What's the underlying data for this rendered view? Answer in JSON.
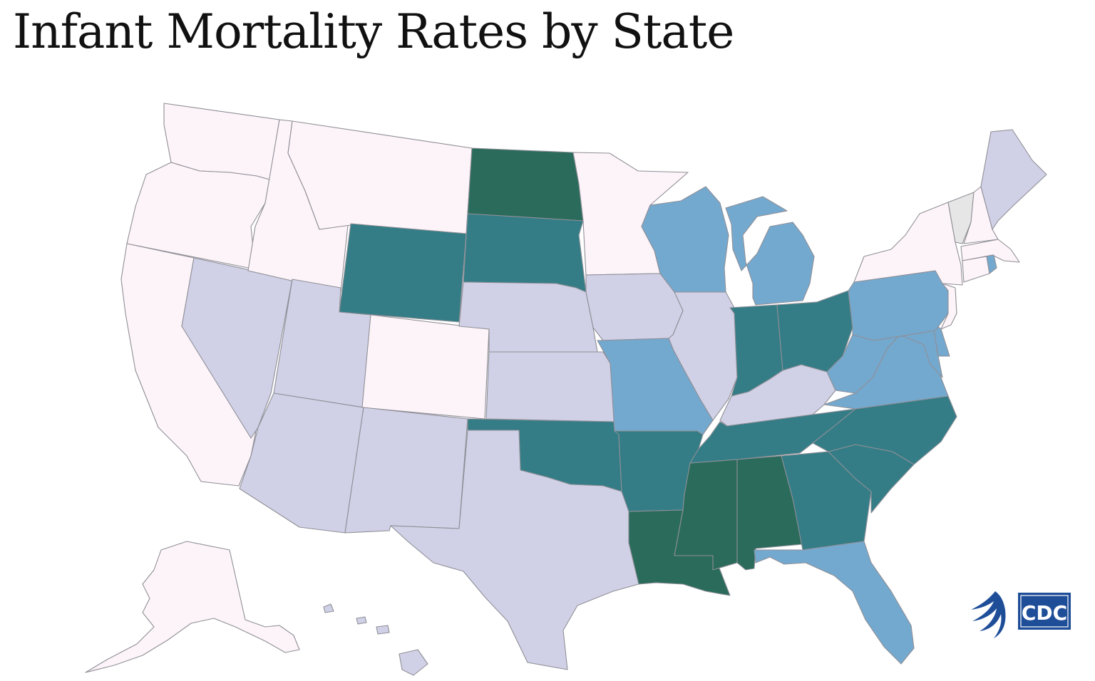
{
  "title": "Infant Mortality Rates by State",
  "colors": {
    "tier1": "#fdf4f9",
    "tier2": "#d0d1e6",
    "tier3": "#74a9cf",
    "tier4": "#347d86",
    "tier5": "#2a6b5c",
    "nodata": "#e6e6e6",
    "border": "#8f8f97"
  },
  "states": {
    "WA": "tier1",
    "OR": "tier1",
    "CA": "tier1",
    "ID": "tier1",
    "MT": "tier1",
    "CO": "tier1",
    "MN": "tier1",
    "NY": "tier1",
    "NH": "tier1",
    "MA": "tier1",
    "CT": "tier1",
    "NJ": "tier1",
    "AK": "tier1",
    "NV": "tier2",
    "UT": "tier2",
    "AZ": "tier2",
    "NM": "tier2",
    "TX": "tier2",
    "NE": "tier2",
    "KS": "tier2",
    "IA": "tier2",
    "IL": "tier2",
    "KY": "tier2",
    "ME": "tier2",
    "HI": "tier2",
    "WI": "tier3",
    "MI": "tier3",
    "MO": "tier3",
    "PA": "tier3",
    "WV": "tier3",
    "VA": "tier3",
    "MD": "tier3",
    "DE": "tier3",
    "FL": "tier3",
    "RI": "tier3",
    "WY": "tier4",
    "SD": "tier4",
    "OK": "tier4",
    "AR": "tier4",
    "IN": "tier4",
    "OH": "tier4",
    "TN": "tier4",
    "NC": "tier4",
    "SC": "tier4",
    "GA": "tier4",
    "ND": "tier5",
    "LA": "tier5",
    "MS": "tier5",
    "AL": "tier5",
    "VT": "nodata"
  },
  "logos": {
    "hhs_icon": "hhs-eagle-icon",
    "cdc_icon": "cdc-logo-icon"
  }
}
